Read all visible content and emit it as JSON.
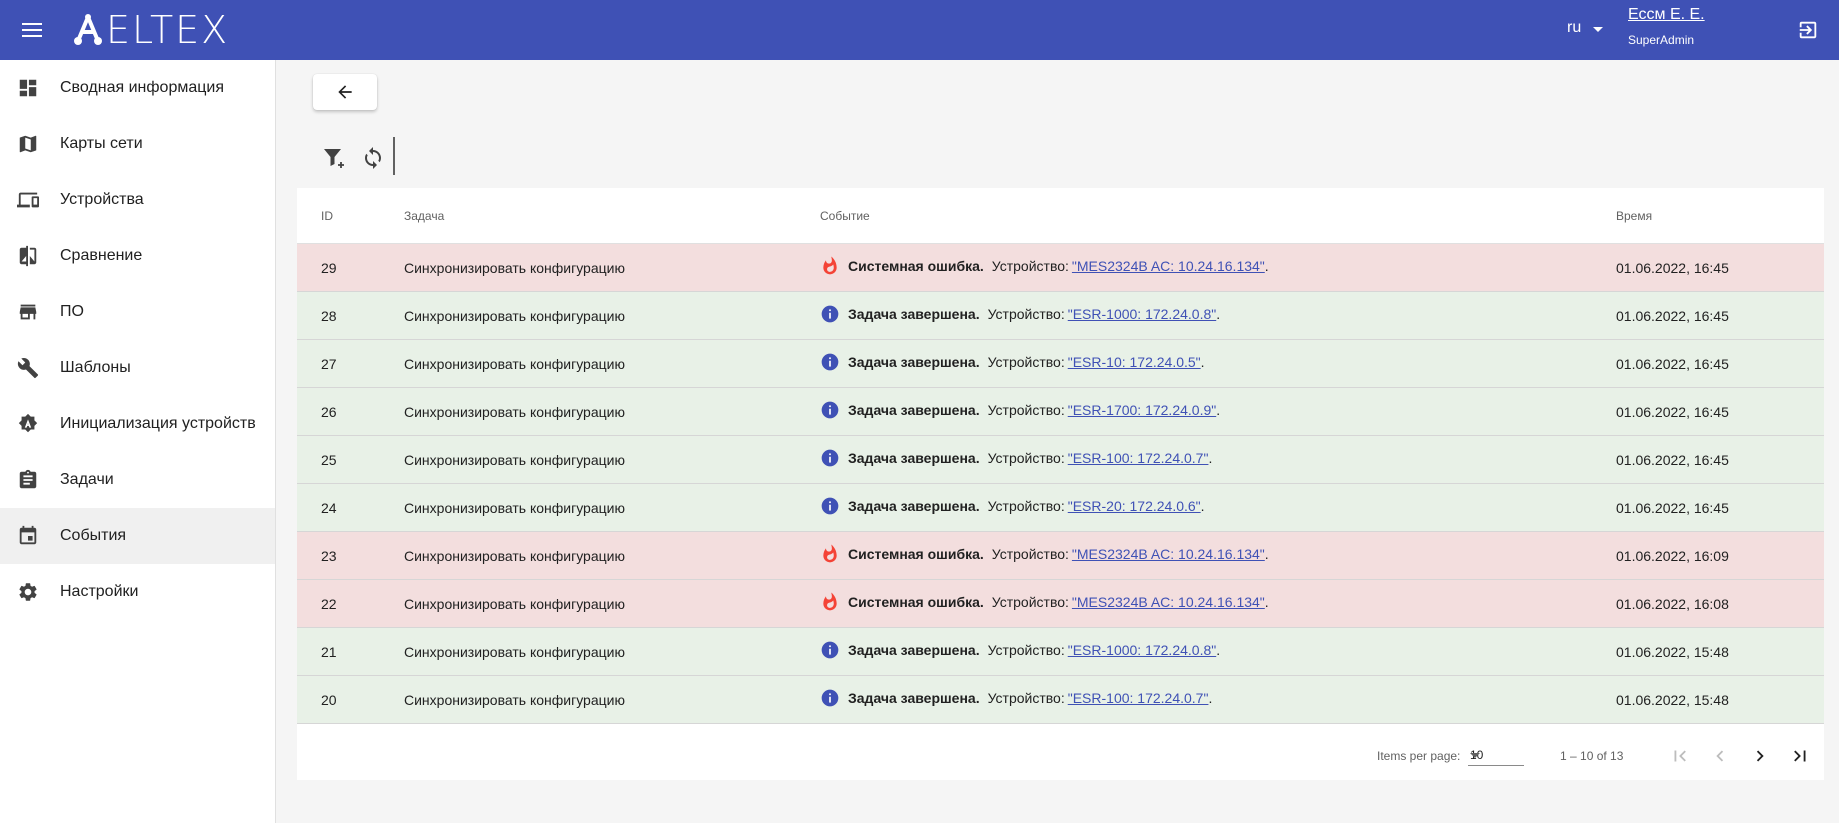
{
  "header": {
    "logo_text": "ELTEX",
    "language": "ru",
    "user_name": "Ессм Е. Е.",
    "user_role": "SuperAdmin"
  },
  "sidebar": {
    "items": [
      {
        "label": "Сводная информация",
        "icon": "dashboard-icon"
      },
      {
        "label": "Карты сети",
        "icon": "map-icon"
      },
      {
        "label": "Устройства",
        "icon": "devices-icon"
      },
      {
        "label": "Сравнение",
        "icon": "compare-icon"
      },
      {
        "label": "ПО",
        "icon": "store-icon"
      },
      {
        "label": "Шаблоны",
        "icon": "wrench-icon"
      },
      {
        "label": "Инициализация устройств",
        "icon": "init-icon"
      },
      {
        "label": "Задачи",
        "icon": "clipboard-icon"
      },
      {
        "label": "События",
        "icon": "calendar-icon"
      },
      {
        "label": "Настройки",
        "icon": "gear-icon"
      }
    ],
    "active_index": 8
  },
  "table": {
    "headers": {
      "id": "ID",
      "task": "Задача",
      "event": "Событие",
      "time": "Время"
    },
    "rows": [
      {
        "id": "29",
        "task": "Синхронизировать конфигурацию",
        "status": "error",
        "event_title": "Системная ошибка.",
        "device_prefix": "Устройство:",
        "device": "\"MES2324B AC: 10.24.16.134\"",
        "suffix": ".",
        "time": "01.06.2022, 16:45"
      },
      {
        "id": "28",
        "task": "Синхронизировать конфигурацию",
        "status": "ok",
        "event_title": "Задача завершена.",
        "device_prefix": "Устройство:",
        "device": "\"ESR-1000: 172.24.0.8\"",
        "suffix": ".",
        "time": "01.06.2022, 16:45"
      },
      {
        "id": "27",
        "task": "Синхронизировать конфигурацию",
        "status": "ok",
        "event_title": "Задача завершена.",
        "device_prefix": "Устройство:",
        "device": "\"ESR-10: 172.24.0.5\"",
        "suffix": ".",
        "time": "01.06.2022, 16:45"
      },
      {
        "id": "26",
        "task": "Синхронизировать конфигурацию",
        "status": "ok",
        "event_title": "Задача завершена.",
        "device_prefix": "Устройство:",
        "device": "\"ESR-1700: 172.24.0.9\"",
        "suffix": ".",
        "time": "01.06.2022, 16:45"
      },
      {
        "id": "25",
        "task": "Синхронизировать конфигурацию",
        "status": "ok",
        "event_title": "Задача завершена.",
        "device_prefix": "Устройство:",
        "device": "\"ESR-100: 172.24.0.7\"",
        "suffix": ".",
        "time": "01.06.2022, 16:45"
      },
      {
        "id": "24",
        "task": "Синхронизировать конфигурацию",
        "status": "ok",
        "event_title": "Задача завершена.",
        "device_prefix": "Устройство:",
        "device": "\"ESR-20: 172.24.0.6\"",
        "suffix": ".",
        "time": "01.06.2022, 16:45"
      },
      {
        "id": "23",
        "task": "Синхронизировать конфигурацию",
        "status": "error",
        "event_title": "Системная ошибка.",
        "device_prefix": "Устройство:",
        "device": "\"MES2324B AC: 10.24.16.134\"",
        "suffix": ".",
        "time": "01.06.2022, 16:09"
      },
      {
        "id": "22",
        "task": "Синхронизировать конфигурацию",
        "status": "error",
        "event_title": "Системная ошибка.",
        "device_prefix": "Устройство:",
        "device": "\"MES2324B AC: 10.24.16.134\"",
        "suffix": ".",
        "time": "01.06.2022, 16:08"
      },
      {
        "id": "21",
        "task": "Синхронизировать конфигурацию",
        "status": "ok",
        "event_title": "Задача завершена.",
        "device_prefix": "Устройство:",
        "device": "\"ESR-1000: 172.24.0.8\"",
        "suffix": ".",
        "time": "01.06.2022, 15:48"
      },
      {
        "id": "20",
        "task": "Синхронизировать конфигурацию",
        "status": "ok",
        "event_title": "Задача завершена.",
        "device_prefix": "Устройство:",
        "device": "\"ESR-100: 172.24.0.7\"",
        "suffix": ".",
        "time": "01.06.2022, 15:48"
      }
    ]
  },
  "pager": {
    "items_per_page_label": "Items per page:",
    "items_per_page_value": "10",
    "range_label": "1 – 10 of 13"
  },
  "colors": {
    "primary": "#3f51b5",
    "error_row": "#f3dede",
    "ok_row": "#e8f1e7",
    "error_icon": "#f44336",
    "info_icon": "#3f51b5"
  }
}
